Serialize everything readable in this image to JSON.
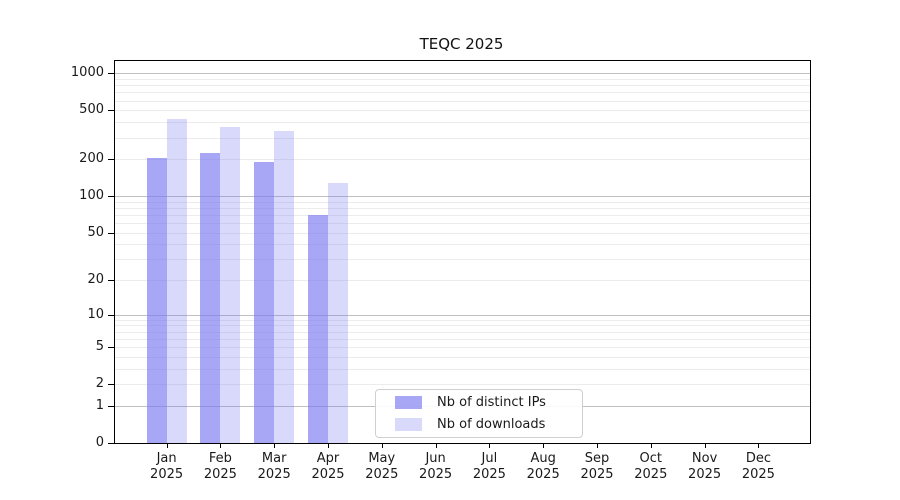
{
  "chart_data": {
    "type": "bar",
    "title": "TEQC 2025",
    "categories": [
      "Jan",
      "Feb",
      "Mar",
      "Apr",
      "May",
      "Jun",
      "Jul",
      "Aug",
      "Sep",
      "Oct",
      "Nov",
      "Dec"
    ],
    "year": "2025",
    "series": [
      {
        "name": "Nb of distinct IPs",
        "color": "rgba(120,120,240,0.65)",
        "values": [
          205,
          225,
          190,
          70,
          null,
          null,
          null,
          null,
          null,
          null,
          null,
          null
        ]
      },
      {
        "name": "Nb of downloads",
        "color": "rgba(120,120,240,0.28)",
        "values": [
          430,
          365,
          340,
          128,
          null,
          null,
          null,
          null,
          null,
          null,
          null,
          null
        ]
      }
    ],
    "y_axis": {
      "scale": "symlog",
      "ticks": [
        0,
        1,
        2,
        5,
        10,
        20,
        50,
        100,
        200,
        500,
        1000
      ],
      "major_gridlines": [
        1,
        10,
        100,
        1000
      ],
      "top_value": 1260
    },
    "x_axis": {
      "tick_label_lines": 2
    },
    "legend": {
      "position": "bottom-center",
      "entries": [
        "Nb of distinct IPs",
        "Nb of downloads"
      ]
    }
  },
  "colors": {
    "bar_base": "#7878f0",
    "major_grid": "#c0c0c0",
    "minor_grid": "#ececec",
    "axis": "#000000",
    "text": "#1a1a1a",
    "legend_border": "#d0d0d0",
    "background": "#ffffff"
  }
}
